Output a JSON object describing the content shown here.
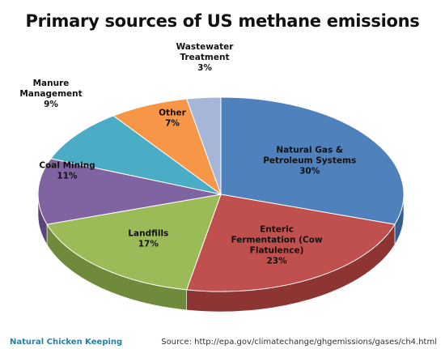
{
  "chart_data": {
    "type": "pie",
    "title": "Primary sources of US methane emissions",
    "slices": [
      {
        "label": [
          "Natural Gas &",
          "Petroleum Systems"
        ],
        "value": 30,
        "display": "30%",
        "color": "#4f81bd",
        "side": "#355e8f"
      },
      {
        "label": [
          "Enteric",
          "Fermentation (Cow",
          "Flatulence)"
        ],
        "value": 23,
        "display": "23%",
        "color": "#c0504d",
        "side": "#8d3532"
      },
      {
        "label": [
          "Landfills"
        ],
        "value": 17,
        "display": "17%",
        "color": "#9bbb59",
        "side": "#6e8a3a"
      },
      {
        "label": [
          "Coal Mining"
        ],
        "value": 11,
        "display": "11%",
        "color": "#8064a2",
        "side": "#5a4478"
      },
      {
        "label": [
          "Manure",
          "Management"
        ],
        "value": 9,
        "display": "9%",
        "color": "#4bacc6",
        "side": "#32809a"
      },
      {
        "label": [
          "Other"
        ],
        "value": 7,
        "display": "7%",
        "color": "#f79646",
        "side": "#c2702d"
      },
      {
        "label": [
          "Wastewater",
          "Treatment"
        ],
        "value": 3,
        "display": "3%",
        "color": "#a5b6d9",
        "side": "#7e8fb2"
      }
    ]
  },
  "footer": {
    "brand": "Natural Chicken Keeping",
    "source": "Source: http://epa.gov/climatechange/ghgemissions/gases/ch4.html"
  }
}
